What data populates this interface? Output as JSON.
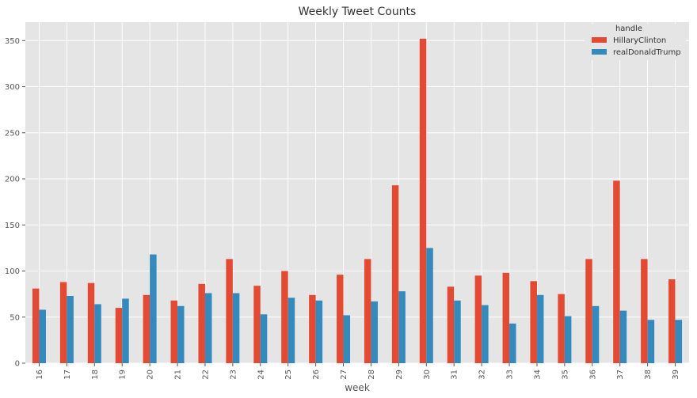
{
  "chart_data": {
    "type": "bar",
    "title": "Weekly Tweet Counts",
    "xlabel": "week",
    "ylabel": "",
    "ylim": [
      0,
      370
    ],
    "yticks": [
      0,
      50,
      100,
      150,
      200,
      250,
      300,
      350
    ],
    "grid": true,
    "legend": {
      "title": "handle",
      "placement": "top-right"
    },
    "categories": [
      "16",
      "17",
      "18",
      "19",
      "20",
      "21",
      "22",
      "23",
      "24",
      "25",
      "26",
      "27",
      "28",
      "29",
      "30",
      "31",
      "32",
      "33",
      "34",
      "35",
      "36",
      "37",
      "38",
      "39"
    ],
    "series": [
      {
        "name": "HillaryClinton",
        "color": "#E24A33",
        "values": [
          81,
          88,
          87,
          60,
          74,
          68,
          86,
          113,
          84,
          100,
          74,
          96,
          113,
          193,
          352,
          83,
          95,
          98,
          89,
          75,
          113,
          198,
          113,
          91
        ]
      },
      {
        "name": "realDonaldTrump",
        "color": "#348ABD",
        "values": [
          58,
          73,
          64,
          70,
          118,
          62,
          76,
          76,
          53,
          71,
          68,
          52,
          67,
          78,
          125,
          68,
          63,
          43,
          74,
          51,
          62,
          57,
          47,
          47
        ]
      }
    ]
  },
  "style": {
    "plot_background": "#E5E5E5",
    "grid_color": "#FFFFFF"
  }
}
